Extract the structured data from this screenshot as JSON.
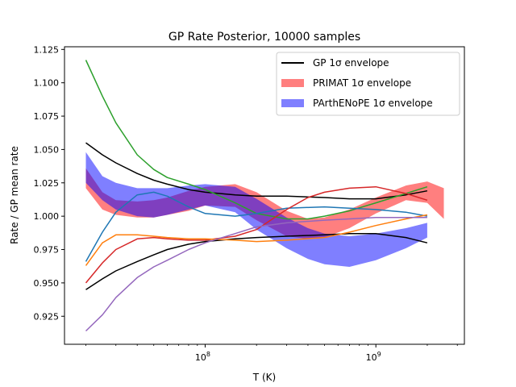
{
  "chart_data": {
    "type": "line",
    "title": "GP Rate Posterior, 10000 samples",
    "xlabel": "T (K)",
    "ylabel": "Rate / GP mean rate",
    "xscale": "log",
    "xlim": [
      15000000,
      3300000000
    ],
    "ylim": [
      0.904,
      1.127
    ],
    "yticks": [
      "0.925",
      "0.950",
      "0.975",
      "1.000",
      "1.025",
      "1.050",
      "1.075",
      "1.100",
      "1.125"
    ],
    "xticks": [
      {
        "value": 100000000,
        "base": "10",
        "exp": "8"
      },
      {
        "value": 1000000000,
        "base": "10",
        "exp": "9"
      }
    ],
    "legend": {
      "placement": "top-right",
      "entries": [
        {
          "label": "GP 1σ envelope",
          "kind": "line",
          "color": "#000000"
        },
        {
          "label": "PRIMAT 1σ envelope",
          "kind": "band",
          "color": "#ff7f7f"
        },
        {
          "label": "PArthENoPE 1σ envelope",
          "kind": "band",
          "color": "#7f7fff"
        }
      ]
    },
    "bands": [
      {
        "name": "PRIMAT 1σ envelope",
        "color": "#ff0000",
        "opacity": 0.5,
        "x": [
          20000000,
          25000000,
          30000000,
          40000000,
          50000000,
          60000000,
          80000000,
          100000000,
          150000000,
          200000000,
          300000000,
          400000000,
          500000000,
          700000000,
          1000000000,
          1500000000,
          2000000000,
          2500000000
        ],
        "upper": [
          1.036,
          1.018,
          1.012,
          1.011,
          1.012,
          1.014,
          1.019,
          1.022,
          1.024,
          1.018,
          1.004,
          0.998,
          0.999,
          1.005,
          1.014,
          1.023,
          1.026,
          1.021
        ],
        "lower": [
          1.021,
          1.005,
          1.001,
          0.999,
          0.999,
          1.001,
          1.004,
          1.008,
          1.007,
          0.997,
          0.985,
          0.983,
          0.984,
          0.991,
          1.002,
          1.012,
          1.01,
          0.998
        ]
      },
      {
        "name": "PArthENoPE 1σ envelope",
        "color": "#0000ff",
        "opacity": 0.5,
        "x": [
          20000000,
          25000000,
          30000000,
          40000000,
          50000000,
          60000000,
          80000000,
          100000000,
          150000000,
          200000000,
          300000000,
          400000000,
          500000000,
          700000000,
          1000000000,
          1500000000,
          2000000000
        ],
        "upper": [
          1.048,
          1.03,
          1.025,
          1.021,
          1.021,
          1.021,
          1.023,
          1.024,
          1.022,
          1.013,
          0.999,
          0.991,
          0.987,
          0.985,
          0.987,
          0.991,
          0.995
        ],
        "lower": [
          1.025,
          1.012,
          1.005,
          1.0,
          0.999,
          1.001,
          1.005,
          1.008,
          1.003,
          0.99,
          0.976,
          0.968,
          0.964,
          0.962,
          0.967,
          0.976,
          0.984
        ]
      }
    ],
    "lines": [
      {
        "name": "GP 1σ envelope upper",
        "color": "#000000",
        "x": [
          20000000,
          25000000,
          30000000,
          40000000,
          50000000,
          60000000,
          80000000,
          100000000,
          150000000,
          200000000,
          300000000,
          500000000,
          700000000,
          1000000000,
          1500000000,
          2000000000
        ],
        "y": [
          1.055,
          1.046,
          1.04,
          1.032,
          1.027,
          1.024,
          1.02,
          1.018,
          1.016,
          1.015,
          1.015,
          1.014,
          1.013,
          1.013,
          1.016,
          1.019
        ]
      },
      {
        "name": "GP 1σ envelope lower",
        "color": "#000000",
        "x": [
          20000000,
          25000000,
          30000000,
          40000000,
          50000000,
          60000000,
          80000000,
          100000000,
          150000000,
          200000000,
          300000000,
          500000000,
          700000000,
          1000000000,
          1500000000,
          2000000000
        ],
        "y": [
          0.945,
          0.953,
          0.959,
          0.966,
          0.971,
          0.975,
          0.979,
          0.981,
          0.983,
          0.984,
          0.985,
          0.986,
          0.987,
          0.987,
          0.984,
          0.98
        ]
      },
      {
        "name": "sample green",
        "color": "#2ca02c",
        "x": [
          20000000,
          25000000,
          30000000,
          40000000,
          50000000,
          60000000,
          80000000,
          100000000,
          150000000,
          200000000,
          300000000,
          400000000,
          500000000,
          700000000,
          1000000000,
          1500000000,
          2000000000
        ],
        "y": [
          1.117,
          1.09,
          1.07,
          1.046,
          1.035,
          1.029,
          1.024,
          1.02,
          1.01,
          1.002,
          0.998,
          0.998,
          1.0,
          1.004,
          1.01,
          1.017,
          1.022
        ]
      },
      {
        "name": "sample blue",
        "color": "#1f77b4",
        "x": [
          20000000,
          25000000,
          30000000,
          40000000,
          50000000,
          60000000,
          80000000,
          100000000,
          150000000,
          200000000,
          300000000,
          500000000,
          700000000,
          1000000000,
          1500000000,
          2000000000
        ],
        "y": [
          0.966,
          0.988,
          1.003,
          1.016,
          1.018,
          1.015,
          1.007,
          1.002,
          1.0,
          1.002,
          1.006,
          1.007,
          1.006,
          1.005,
          1.003,
          1.0
        ]
      },
      {
        "name": "sample red",
        "color": "#d62728",
        "x": [
          20000000,
          25000000,
          30000000,
          40000000,
          50000000,
          60000000,
          80000000,
          100000000,
          150000000,
          200000000,
          300000000,
          400000000,
          500000000,
          700000000,
          1000000000,
          1500000000,
          2000000000
        ],
        "y": [
          0.95,
          0.965,
          0.975,
          0.983,
          0.984,
          0.983,
          0.982,
          0.982,
          0.985,
          0.99,
          1.005,
          1.014,
          1.018,
          1.021,
          1.022,
          1.017,
          1.012
        ]
      },
      {
        "name": "sample orange",
        "color": "#ff7f0e",
        "x": [
          20000000,
          25000000,
          30000000,
          40000000,
          50000000,
          60000000,
          80000000,
          100000000,
          150000000,
          200000000,
          300000000,
          500000000,
          700000000,
          1000000000,
          1500000000,
          2000000000
        ],
        "y": [
          0.963,
          0.98,
          0.986,
          0.986,
          0.985,
          0.984,
          0.983,
          0.983,
          0.982,
          0.981,
          0.982,
          0.984,
          0.988,
          0.993,
          0.998,
          1.001
        ]
      },
      {
        "name": "sample purple",
        "color": "#9467bd",
        "x": [
          20000000,
          25000000,
          30000000,
          40000000,
          50000000,
          60000000,
          80000000,
          100000000,
          150000000,
          200000000,
          300000000,
          500000000,
          700000000,
          1000000000,
          1500000000,
          2000000000
        ],
        "y": [
          0.914,
          0.926,
          0.939,
          0.954,
          0.962,
          0.967,
          0.975,
          0.98,
          0.987,
          0.992,
          0.995,
          0.997,
          0.998,
          0.999,
          0.999,
          0.999
        ]
      }
    ]
  }
}
